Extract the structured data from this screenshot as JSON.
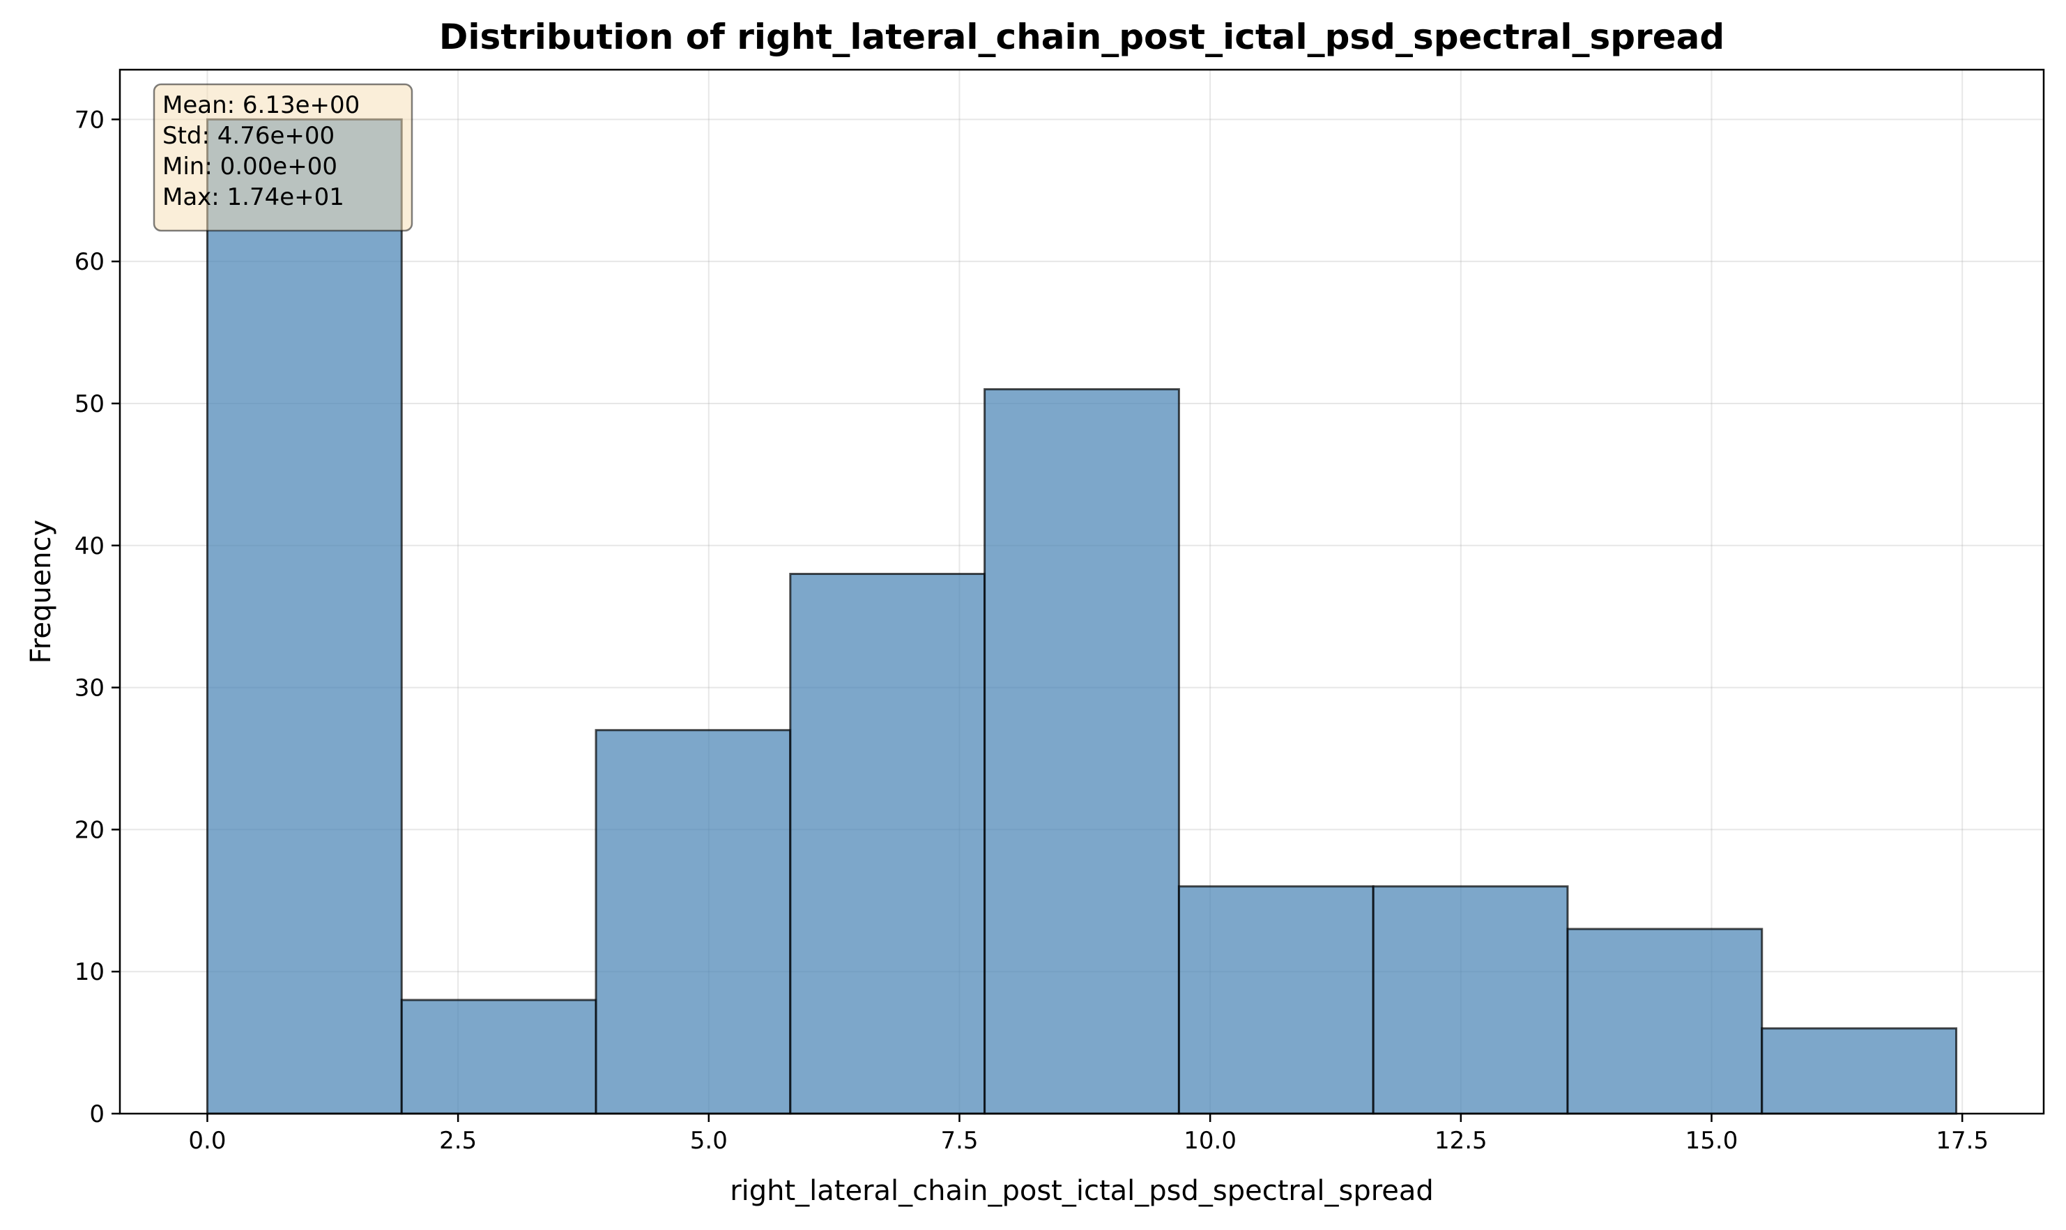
{
  "chart_data": {
    "type": "bar",
    "title": "Distribution of right_lateral_chain_post_ictal_psd_spectral_spread",
    "xlabel": "right_lateral_chain_post_ictal_psd_spectral_spread",
    "ylabel": "Frequency",
    "bin_edges": [
      0.0,
      1.9378,
      3.8756,
      5.8133,
      7.7511,
      9.6889,
      11.6267,
      13.5644,
      15.5022,
      17.44
    ],
    "values": [
      70,
      8,
      27,
      38,
      51,
      16,
      16,
      13,
      6
    ],
    "xlim": [
      -0.872,
      18.312
    ],
    "ylim": [
      0,
      73.5
    ],
    "xticks": [
      0.0,
      2.5,
      5.0,
      7.5,
      10.0,
      12.5,
      15.0,
      17.5
    ],
    "xtick_labels": [
      "0.0",
      "2.5",
      "5.0",
      "7.5",
      "10.0",
      "12.5",
      "15.0",
      "17.5"
    ],
    "yticks": [
      0,
      10,
      20,
      30,
      40,
      50,
      60,
      70
    ],
    "ytick_labels": [
      "0",
      "10",
      "20",
      "30",
      "40",
      "50",
      "60",
      "70"
    ],
    "grid": true,
    "colors": {
      "bar_fill": "#4682b4",
      "bar_edge": "#000000",
      "stats_box_fill": "#f5deb3"
    },
    "stats_box": {
      "placement": "top-left",
      "lines": [
        "Mean: 6.13e+00",
        "Std: 4.76e+00",
        "Min: 0.00e+00",
        "Max: 1.74e+01"
      ]
    }
  }
}
